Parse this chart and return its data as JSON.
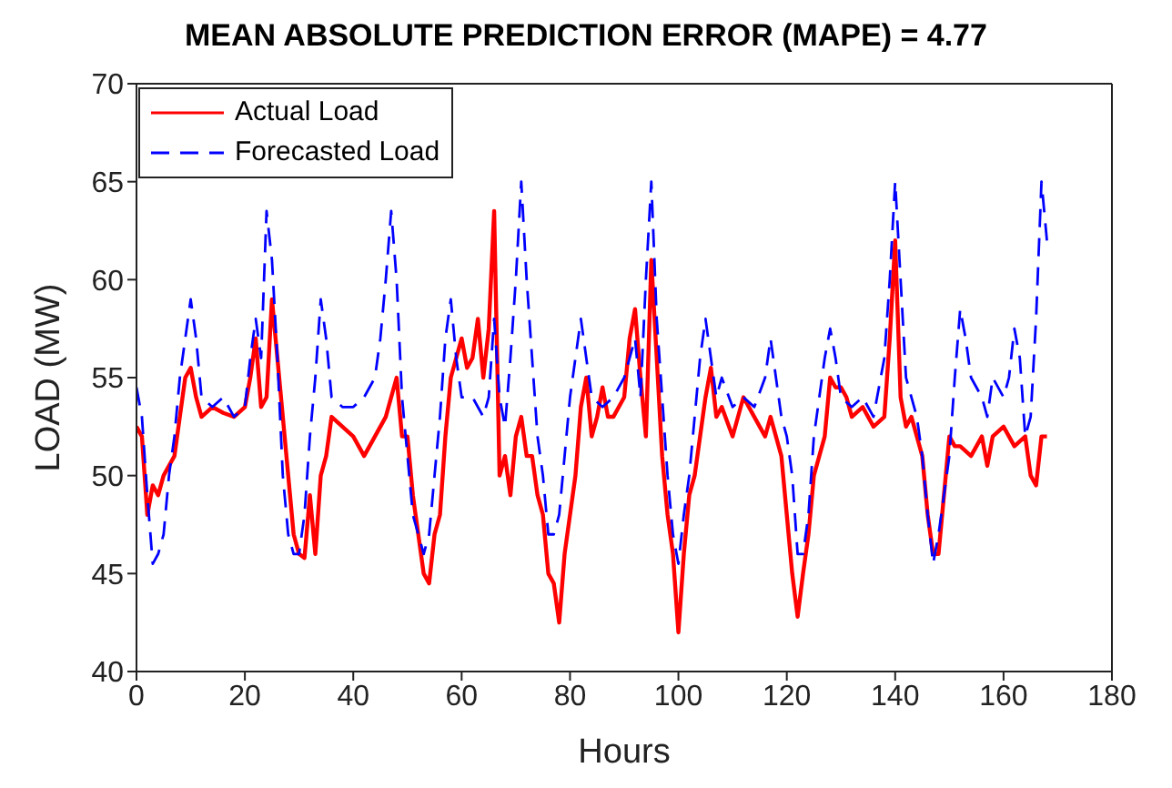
{
  "chart_data": {
    "type": "line",
    "title": "MEAN ABSOLUTE PREDICTION ERROR (MAPE)  = 4.77",
    "xlabel": "Hours",
    "ylabel": "LOAD (MW)",
    "xlim": [
      0,
      180
    ],
    "xticks": [
      0,
      20,
      40,
      60,
      80,
      100,
      120,
      140,
      160,
      180
    ],
    "ylim": [
      40,
      70
    ],
    "yticks": [
      40,
      45,
      50,
      55,
      60,
      65,
      70
    ],
    "grid": false,
    "legend": "top left",
    "marker": "none",
    "series": [
      {
        "name": "Actual Load",
        "color": "#ff0000",
        "line_style": "solid",
        "x": [
          0,
          1,
          2,
          3,
          4,
          5,
          6,
          7,
          8,
          9,
          10,
          11,
          12,
          14,
          16,
          18,
          20,
          21,
          22,
          23,
          24,
          25,
          26,
          27,
          28,
          29,
          30,
          31,
          32,
          33,
          34,
          35,
          36,
          38,
          40,
          42,
          44,
          46,
          48,
          49,
          50,
          51,
          52,
          53,
          54,
          55,
          56,
          57,
          58,
          59,
          60,
          61,
          62,
          63,
          64,
          65,
          66,
          67,
          68,
          69,
          70,
          71,
          72,
          73,
          74,
          75,
          76,
          77,
          78,
          79,
          80,
          81,
          82,
          83,
          84,
          85,
          86,
          87,
          88,
          90,
          91,
          92,
          93,
          94,
          95,
          96,
          97,
          98,
          99,
          100,
          101,
          102,
          103,
          104,
          105,
          106,
          107,
          108,
          110,
          112,
          114,
          116,
          117,
          118,
          119,
          120,
          121,
          122,
          123,
          124,
          125,
          126,
          127,
          128,
          129,
          130,
          131,
          132,
          134,
          136,
          138,
          139,
          140,
          141,
          142,
          143,
          144,
          145,
          146,
          147,
          148,
          149,
          150,
          151,
          152,
          154,
          156,
          157,
          158,
          160,
          162,
          164,
          165,
          166,
          167,
          168
        ],
        "values": [
          52.5,
          52,
          48,
          49.5,
          49,
          50,
          50.5,
          51,
          53,
          55,
          55.5,
          54,
          53,
          53.5,
          53.2,
          53,
          53.5,
          55,
          57,
          53.5,
          54,
          59,
          56,
          53,
          50,
          47,
          46,
          45.8,
          49,
          46,
          50,
          51,
          53,
          52.5,
          52,
          51,
          52,
          53,
          55,
          52,
          52,
          49,
          47,
          45,
          44.5,
          47,
          48,
          52,
          55,
          56,
          57,
          55.5,
          56,
          58,
          55,
          57.5,
          63.5,
          50,
          51,
          49,
          52,
          53,
          51,
          51,
          49,
          48,
          45,
          44.5,
          42.5,
          46,
          48,
          50,
          53.5,
          55,
          52,
          53,
          54.5,
          53,
          53,
          54,
          57,
          58.5,
          55,
          52,
          61,
          56,
          51,
          48,
          46,
          42,
          46,
          49,
          50,
          52,
          54,
          55.5,
          53,
          53.5,
          52,
          54,
          53,
          52,
          53,
          52,
          51,
          48,
          45,
          42.8,
          45,
          47,
          50,
          51,
          52,
          55,
          54.5,
          54.5,
          54,
          53,
          53.5,
          52.5,
          53,
          57,
          62,
          54,
          52.5,
          53,
          52,
          51,
          48,
          46,
          46,
          49,
          52,
          51.5,
          51.5,
          51,
          52,
          50.5,
          52,
          52.5,
          51.5,
          52,
          50,
          49.5,
          52,
          52
        ]
      },
      {
        "name": "Forecasted Load",
        "color": "#0000ff",
        "line_style": "dashed",
        "x": [
          0,
          1,
          2,
          3,
          4,
          5,
          6,
          7,
          8,
          9,
          10,
          11,
          12,
          14,
          16,
          18,
          20,
          21,
          22,
          23,
          24,
          25,
          26,
          27,
          28,
          29,
          30,
          31,
          32,
          33,
          34,
          35,
          36,
          38,
          40,
          42,
          44,
          45,
          46,
          47,
          48,
          49,
          50,
          51,
          52,
          53,
          54,
          55,
          56,
          57,
          58,
          59,
          60,
          62,
          64,
          65,
          66,
          67,
          68,
          69,
          70,
          71,
          72,
          73,
          74,
          75,
          76,
          77,
          78,
          79,
          80,
          81,
          82,
          83,
          84,
          86,
          88,
          90,
          92,
          93,
          94,
          95,
          96,
          97,
          98,
          99,
          100,
          101,
          102,
          103,
          104,
          105,
          106,
          107,
          108,
          110,
          112,
          114,
          116,
          117,
          118,
          119,
          120,
          121,
          122,
          123,
          124,
          125,
          126,
          127,
          128,
          129,
          130,
          132,
          134,
          136,
          138,
          139,
          140,
          141,
          142,
          143,
          144,
          145,
          146,
          147,
          148,
          149,
          150,
          151,
          152,
          153,
          154,
          156,
          157,
          158,
          160,
          161,
          162,
          163,
          164,
          165,
          166,
          167,
          168
        ],
        "values": [
          54.5,
          53,
          49,
          45.5,
          46,
          47,
          50,
          52,
          55,
          57,
          59,
          57,
          54,
          53.5,
          54,
          53,
          53.5,
          56,
          58,
          56,
          63.5,
          61,
          56,
          50,
          47,
          46,
          46,
          48,
          52,
          55,
          59,
          57,
          54,
          53.5,
          53.5,
          54,
          55,
          57,
          60,
          63.5,
          60,
          54,
          51,
          48,
          47,
          46,
          47,
          50,
          53,
          57,
          59,
          56,
          54,
          54,
          53,
          54,
          58,
          54,
          52.5,
          56,
          60,
          65,
          60,
          56,
          52,
          50,
          47,
          47,
          48,
          51,
          54,
          56,
          58,
          56,
          54,
          53.5,
          54,
          55,
          57,
          54,
          60,
          65,
          58,
          54,
          50,
          47,
          45.5,
          48,
          50,
          53,
          56,
          58,
          56,
          54,
          55,
          53.5,
          54,
          53.5,
          55,
          57,
          55,
          53,
          52,
          50,
          46,
          46,
          48,
          52,
          54,
          56,
          57.5,
          56,
          54,
          53.5,
          54,
          53,
          56,
          60,
          65,
          60,
          55,
          54,
          53,
          51,
          48,
          45.5,
          47,
          49,
          51,
          55,
          58.5,
          57,
          55,
          54,
          53,
          55,
          54,
          55,
          57.5,
          56,
          52,
          53,
          58,
          65,
          62
        ]
      }
    ]
  }
}
